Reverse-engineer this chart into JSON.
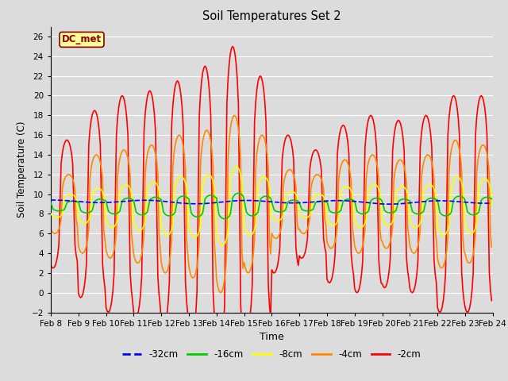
{
  "title": "Soil Temperatures Set 2",
  "xlabel": "Time",
  "ylabel": "Soil Temperature (C)",
  "ylim": [
    -2,
    27
  ],
  "yticks": [
    -2,
    0,
    2,
    4,
    6,
    8,
    10,
    12,
    14,
    16,
    18,
    20,
    22,
    24,
    26
  ],
  "bg_color": "#dcdcdc",
  "grid_color": "#ffffff",
  "annotation_text": "DC_met",
  "annotation_color": "#8b0000",
  "annotation_bg": "#ffff99",
  "annotation_border": "#8b0000",
  "legend_labels": [
    "-32cm",
    "-16cm",
    "-8cm",
    "-4cm",
    "-2cm"
  ],
  "line_colors": [
    "#0000ff",
    "#00cc00",
    "#ffff00",
    "#ff8800",
    "#ff0000"
  ],
  "num_days": 16,
  "base_temp_32": 9.25,
  "base_temp_16": 8.8,
  "base_temp_8": 8.8,
  "base_temp_4": 9.0,
  "base_temp_2": 9.0,
  "amps_2cm": [
    6.5,
    9.5,
    11.0,
    11.5,
    12.5,
    14.0,
    16.0,
    13.0,
    7.0,
    5.5,
    8.0,
    9.0,
    8.5,
    9.0,
    11.0,
    11.0
  ],
  "amps_4cm": [
    3.0,
    5.0,
    5.5,
    6.0,
    7.0,
    7.5,
    9.0,
    7.0,
    3.5,
    3.0,
    4.5,
    5.0,
    4.5,
    5.0,
    6.5,
    6.0
  ],
  "amps_8cm": [
    1.2,
    1.8,
    2.2,
    2.5,
    3.0,
    3.2,
    4.0,
    3.0,
    1.5,
    1.2,
    2.0,
    2.2,
    2.0,
    2.2,
    3.0,
    2.8
  ],
  "amps_16cm": [
    0.5,
    0.7,
    0.8,
    0.9,
    1.0,
    1.1,
    1.3,
    1.0,
    0.6,
    0.5,
    0.7,
    0.8,
    0.7,
    0.8,
    1.0,
    0.9
  ],
  "phase_2": 14.0,
  "phase_4": 15.5,
  "phase_8": 17.0,
  "phase_16": 19.0,
  "peak_sharpness": 3.0
}
